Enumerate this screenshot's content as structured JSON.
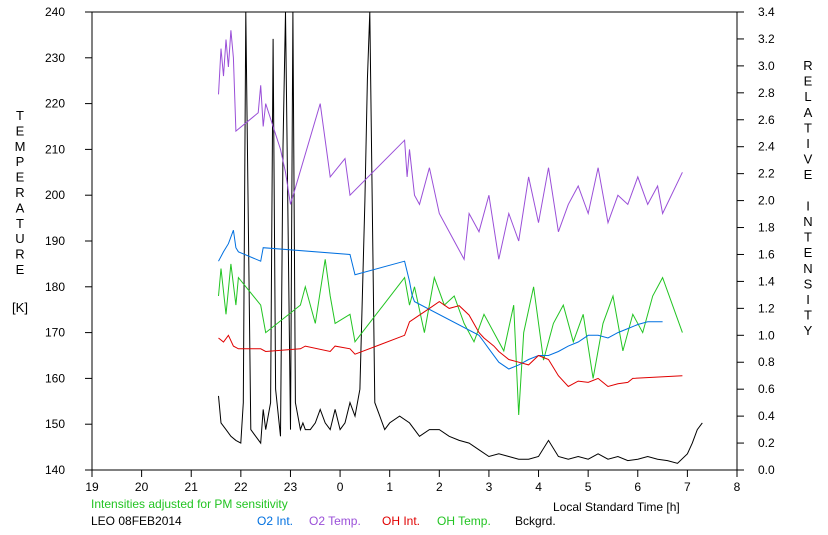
{
  "chart_data": {
    "type": "line",
    "title": "",
    "x_axis": {
      "label": "Local Standard Time [h]",
      "ticks": [
        "19",
        "20",
        "21",
        "22",
        "23",
        "0",
        "1",
        "2",
        "3",
        "4",
        "5",
        "6",
        "7",
        "8"
      ],
      "range": [
        19,
        32
      ]
    },
    "y_left": {
      "label_letters": [
        "T",
        "E",
        "M",
        "P",
        "E",
        "R",
        "A",
        "T",
        "U",
        "R",
        "E"
      ],
      "unit": "[K]",
      "ticks": [
        "140",
        "150",
        "160",
        "170",
        "180",
        "190",
        "200",
        "210",
        "220",
        "230",
        "240"
      ],
      "range": [
        140,
        240
      ]
    },
    "y_right": {
      "label_letters": [
        "R",
        "E",
        "L",
        "A",
        "T",
        "I",
        "V",
        "E",
        "",
        "I",
        "N",
        "T",
        "E",
        "N",
        "S",
        "I",
        "T",
        "Y"
      ],
      "ticks": [
        "0.0",
        "0.2",
        "0.4",
        "0.6",
        "0.8",
        "1.0",
        "1.2",
        "1.4",
        "1.6",
        "1.8",
        "2.0",
        "2.2",
        "2.4",
        "2.6",
        "2.8",
        "3.0",
        "3.2",
        "3.4"
      ],
      "range": [
        0,
        3.4
      ]
    },
    "note": "Intensities adjusted for PM sensitivity",
    "station": "LEO 08FEB2014",
    "series": [
      {
        "name": "O2 Int.",
        "axis": "right",
        "color": "#0070e0",
        "x": [
          21.55,
          21.65,
          21.75,
          21.85,
          21.9,
          21.95,
          22.4,
          22.45,
          24.2,
          24.3,
          25.3,
          25.4,
          25.45,
          25.5,
          26.8,
          26.9,
          27.0,
          27.2,
          27.4,
          27.6,
          27.8,
          28.0,
          28.2,
          28.4,
          28.6,
          28.8,
          29.0,
          29.2,
          29.4,
          29.6,
          29.8,
          30.0,
          30.2,
          30.4,
          30.5
        ],
        "values": [
          1.55,
          1.62,
          1.68,
          1.78,
          1.65,
          1.62,
          1.55,
          1.65,
          1.6,
          1.45,
          1.55,
          1.4,
          1.3,
          1.25,
          1.0,
          0.95,
          0.9,
          0.8,
          0.75,
          0.78,
          0.82,
          0.85,
          0.85,
          0.88,
          0.92,
          0.95,
          1.0,
          1.0,
          0.98,
          1.02,
          1.05,
          1.08,
          1.1,
          1.1,
          1.1
        ]
      },
      {
        "name": "O2 Temp.",
        "axis": "left",
        "color": "#9a4fd8",
        "x": [
          21.55,
          21.6,
          21.65,
          21.7,
          21.75,
          21.8,
          21.85,
          21.9,
          22.35,
          22.4,
          22.45,
          22.5,
          22.8,
          22.9,
          23.0,
          23.6,
          23.7,
          23.8,
          24.1,
          24.2,
          25.3,
          25.35,
          25.4,
          25.5,
          25.6,
          25.8,
          26.0,
          26.3,
          26.5,
          26.6,
          26.8,
          27.0,
          27.2,
          27.4,
          27.6,
          27.8,
          28.0,
          28.2,
          28.4,
          28.6,
          28.8,
          29.0,
          29.2,
          29.4,
          29.6,
          29.8,
          30.0,
          30.2,
          30.4,
          30.5,
          30.9
        ],
        "values": [
          222,
          232,
          226,
          234,
          228,
          236,
          230,
          214,
          218,
          224,
          215,
          220,
          210,
          205,
          198,
          220,
          212,
          204,
          208,
          200,
          212,
          204,
          210,
          200,
          198,
          206,
          196,
          190,
          186,
          196,
          192,
          200,
          186,
          196,
          190,
          204,
          194,
          206,
          192,
          198,
          202,
          196,
          206,
          194,
          200,
          198,
          204,
          198,
          202,
          196,
          205
        ]
      },
      {
        "name": "OH Int.",
        "axis": "right",
        "color": "#e00000",
        "x": [
          21.55,
          21.65,
          21.75,
          21.85,
          21.95,
          22.4,
          22.5,
          23.2,
          23.3,
          23.8,
          23.9,
          24.2,
          24.3,
          25.3,
          25.4,
          25.6,
          25.8,
          26.0,
          26.2,
          26.4,
          26.6,
          26.8,
          26.9,
          27.0,
          27.1,
          27.2,
          27.3,
          27.4,
          27.6,
          27.8,
          28.0,
          28.2,
          28.4,
          28.6,
          28.8,
          29.0,
          29.2,
          29.4,
          29.6,
          29.8,
          29.9,
          30.9
        ],
        "values": [
          0.98,
          0.95,
          1.0,
          0.92,
          0.9,
          0.9,
          0.88,
          0.9,
          0.92,
          0.88,
          0.92,
          0.9,
          0.86,
          1.0,
          1.1,
          1.15,
          1.2,
          1.25,
          1.2,
          1.22,
          1.15,
          1.02,
          0.98,
          0.95,
          0.92,
          0.88,
          0.85,
          0.82,
          0.8,
          0.78,
          0.85,
          0.82,
          0.7,
          0.62,
          0.66,
          0.65,
          0.68,
          0.62,
          0.64,
          0.65,
          0.68,
          0.7
        ]
      },
      {
        "name": "OH Temp.",
        "axis": "left",
        "color": "#22c422",
        "x": [
          21.55,
          21.6,
          21.7,
          21.8,
          21.9,
          21.95,
          22.4,
          22.5,
          23.2,
          23.3,
          23.5,
          23.7,
          23.8,
          23.9,
          24.2,
          24.3,
          25.3,
          25.4,
          25.5,
          25.7,
          25.9,
          26.1,
          26.3,
          26.5,
          26.7,
          26.9,
          27.1,
          27.3,
          27.5,
          27.6,
          27.7,
          27.9,
          28.1,
          28.3,
          28.5,
          28.7,
          28.9,
          29.1,
          29.3,
          29.5,
          29.7,
          29.9,
          30.1,
          30.3,
          30.5,
          30.9
        ],
        "values": [
          178,
          184,
          174,
          185,
          176,
          182,
          176,
          170,
          176,
          180,
          172,
          186,
          178,
          172,
          174,
          168,
          182,
          176,
          180,
          170,
          182,
          176,
          178,
          172,
          168,
          174,
          170,
          166,
          176,
          152,
          170,
          180,
          164,
          172,
          176,
          168,
          174,
          160,
          172,
          178,
          166,
          174,
          170,
          178,
          182,
          170
        ]
      },
      {
        "name": "Bckgrd.",
        "axis": "right",
        "color": "#000000",
        "x": [
          21.55,
          21.6,
          21.7,
          21.8,
          21.9,
          22.0,
          22.05,
          22.1,
          22.2,
          22.3,
          22.4,
          22.45,
          22.5,
          22.6,
          22.65,
          22.7,
          22.8,
          22.85,
          22.9,
          23.0,
          23.05,
          23.1,
          23.2,
          23.25,
          23.3,
          23.4,
          23.5,
          23.6,
          23.7,
          23.8,
          23.9,
          24.0,
          24.1,
          24.2,
          24.3,
          24.4,
          24.5,
          24.55,
          24.6,
          24.7,
          24.8,
          24.9,
          25.0,
          25.2,
          25.4,
          25.6,
          25.8,
          26.0,
          26.2,
          26.4,
          26.6,
          26.8,
          27.0,
          27.2,
          27.4,
          27.6,
          27.8,
          28.0,
          28.2,
          28.4,
          28.6,
          28.8,
          29.0,
          29.2,
          29.4,
          29.6,
          29.8,
          30.0,
          30.2,
          30.4,
          30.6,
          30.8,
          31.0,
          31.1,
          31.2,
          31.3
        ],
        "values": [
          0.55,
          0.35,
          0.3,
          0.25,
          0.22,
          0.2,
          0.5,
          3.4,
          0.3,
          0.25,
          0.2,
          0.45,
          0.3,
          0.5,
          3.2,
          0.6,
          0.25,
          2.4,
          3.4,
          0.3,
          3.4,
          0.5,
          0.3,
          0.35,
          0.3,
          0.3,
          0.35,
          0.45,
          0.35,
          0.3,
          0.45,
          0.3,
          0.35,
          0.5,
          0.4,
          0.6,
          2.0,
          2.9,
          3.4,
          0.5,
          0.4,
          0.3,
          0.35,
          0.4,
          0.35,
          0.25,
          0.3,
          0.3,
          0.25,
          0.22,
          0.2,
          0.15,
          0.1,
          0.12,
          0.1,
          0.08,
          0.08,
          0.1,
          0.22,
          0.1,
          0.08,
          0.1,
          0.08,
          0.12,
          0.08,
          0.1,
          0.07,
          0.08,
          0.1,
          0.08,
          0.07,
          0.05,
          0.12,
          0.2,
          0.3,
          0.35
        ]
      }
    ]
  }
}
